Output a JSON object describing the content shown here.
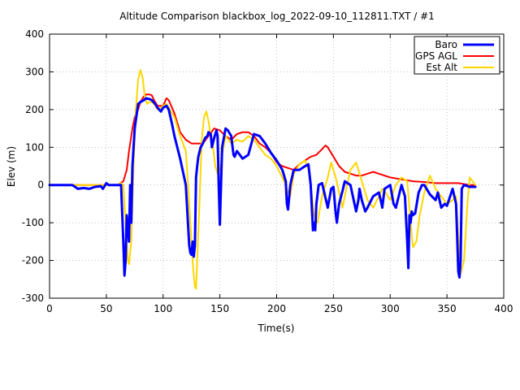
{
  "chart_data": {
    "type": "line",
    "title": "Altitude Comparison blackbox_log_2022-09-10_112811.TXT / #1",
    "xlabel": "Time(s)",
    "ylabel": "Elev (m)",
    "xlim": [
      0,
      400
    ],
    "ylim": [
      -300,
      400
    ],
    "xticks": [
      0,
      50,
      100,
      150,
      200,
      250,
      300,
      350,
      400
    ],
    "yticks": [
      -300,
      -200,
      -100,
      0,
      100,
      200,
      300,
      400
    ],
    "grid": true,
    "legend_position": "top-right",
    "series": [
      {
        "name": "Baro",
        "color": "#0000ff",
        "x": [
          0,
          20,
          25,
          30,
          35,
          40,
          45,
          47,
          50,
          52,
          55,
          60,
          63,
          65,
          66,
          67,
          68,
          70,
          71,
          72,
          73,
          75,
          78,
          80,
          83,
          85,
          88,
          90,
          93,
          95,
          98,
          100,
          103,
          105,
          108,
          110,
          115,
          120,
          123,
          124,
          125,
          126,
          127,
          128,
          129,
          130,
          131,
          133,
          135,
          137,
          139,
          140,
          142,
          143,
          145,
          147,
          148,
          149,
          150,
          152,
          155,
          157,
          160,
          162,
          163,
          165,
          170,
          175,
          180,
          185,
          190,
          195,
          200,
          205,
          208,
          209,
          210,
          212,
          215,
          220,
          225,
          228,
          230,
          231,
          232,
          233,
          234,
          235,
          237,
          240,
          245,
          248,
          250,
          252,
          253,
          255,
          258,
          260,
          265,
          270,
          272,
          273,
          275,
          278,
          280,
          285,
          290,
          292,
          293,
          295,
          300,
          303,
          305,
          310,
          313,
          315,
          316,
          317,
          318,
          319,
          320,
          322,
          325,
          328,
          330,
          335,
          340,
          342,
          345,
          348,
          350,
          355,
          358,
          360,
          361,
          362,
          363,
          365,
          370,
          375
        ],
        "y": [
          0,
          0,
          -10,
          -8,
          -10,
          -5,
          -3,
          -10,
          5,
          0,
          0,
          0,
          0,
          -150,
          -240,
          -200,
          -80,
          -150,
          0,
          -100,
          50,
          150,
          215,
          220,
          225,
          230,
          228,
          225,
          215,
          205,
          195,
          205,
          210,
          200,
          160,
          130,
          70,
          0,
          -160,
          -180,
          -185,
          -150,
          -190,
          -160,
          20,
          50,
          75,
          100,
          110,
          125,
          130,
          140,
          135,
          100,
          125,
          145,
          130,
          0,
          -105,
          100,
          150,
          145,
          130,
          80,
          75,
          90,
          70,
          80,
          135,
          130,
          110,
          85,
          65,
          40,
          10,
          -50,
          -65,
          0,
          40,
          40,
          50,
          55,
          0,
          -60,
          -120,
          -100,
          -120,
          -50,
          0,
          5,
          -60,
          -10,
          -5,
          -75,
          -100,
          -50,
          -15,
          10,
          0,
          -70,
          -40,
          -10,
          -40,
          -70,
          -60,
          -30,
          -20,
          -45,
          -60,
          -10,
          0,
          -50,
          -60,
          0,
          -30,
          -150,
          -220,
          -80,
          -100,
          -70,
          -80,
          -75,
          -20,
          0,
          0,
          -25,
          -40,
          -20,
          -60,
          -50,
          -55,
          -10,
          -50,
          -230,
          -245,
          -200,
          -10,
          0,
          -5,
          -5
        ]
      },
      {
        "name": "GPS AGL",
        "color": "#ff0000",
        "x": [
          0,
          50,
          55,
          60,
          65,
          68,
          70,
          73,
          75,
          78,
          80,
          83,
          85,
          88,
          90,
          92,
          95,
          100,
          103,
          105,
          110,
          115,
          120,
          125,
          130,
          135,
          140,
          145,
          150,
          155,
          160,
          165,
          170,
          175,
          180,
          185,
          190,
          195,
          200,
          205,
          210,
          215,
          220,
          225,
          230,
          235,
          240,
          243,
          245,
          250,
          255,
          260,
          265,
          270,
          275,
          280,
          285,
          290,
          300,
          310,
          320,
          330,
          340,
          350,
          360,
          370,
          375
        ],
        "y": [
          0,
          0,
          0,
          0,
          10,
          40,
          90,
          150,
          180,
          200,
          220,
          235,
          240,
          240,
          238,
          225,
          210,
          210,
          230,
          225,
          190,
          140,
          120,
          110,
          110,
          110,
          130,
          150,
          145,
          130,
          120,
          135,
          140,
          140,
          130,
          110,
          100,
          85,
          60,
          50,
          45,
          40,
          55,
          65,
          75,
          80,
          95,
          105,
          100,
          75,
          50,
          35,
          30,
          25,
          25,
          30,
          35,
          30,
          20,
          15,
          10,
          8,
          5,
          5,
          5,
          0,
          0
        ]
      },
      {
        "name": "Est Alt",
        "color": "#ffd700",
        "x": [
          0,
          50,
          55,
          60,
          63,
          65,
          67,
          69,
          70,
          72,
          74,
          76,
          78,
          80,
          82,
          84,
          86,
          88,
          90,
          92,
          95,
          98,
          100,
          103,
          105,
          110,
          115,
          120,
          122,
          124,
          126,
          127,
          128,
          129,
          130,
          132,
          134,
          136,
          138,
          140,
          142,
          144,
          146,
          148,
          150,
          152,
          155,
          160,
          165,
          170,
          175,
          180,
          185,
          190,
          195,
          200,
          205,
          208,
          210,
          212,
          215,
          220,
          225,
          228,
          230,
          233,
          236,
          240,
          245,
          248,
          252,
          255,
          258,
          262,
          265,
          270,
          275,
          280,
          285,
          290,
          293,
          296,
          300,
          305,
          310,
          315,
          318,
          320,
          323,
          326,
          330,
          335,
          340,
          345,
          350,
          355,
          358,
          362,
          365,
          368,
          370,
          375
        ],
        "y": [
          0,
          0,
          0,
          0,
          5,
          0,
          -100,
          -200,
          -210,
          -150,
          50,
          200,
          280,
          305,
          285,
          230,
          215,
          220,
          220,
          215,
          200,
          205,
          210,
          215,
          205,
          180,
          130,
          90,
          0,
          -100,
          -200,
          -240,
          -270,
          -275,
          -200,
          -50,
          120,
          180,
          195,
          170,
          130,
          100,
          50,
          30,
          40,
          80,
          130,
          110,
          120,
          115,
          130,
          120,
          100,
          80,
          70,
          50,
          20,
          0,
          -20,
          -30,
          30,
          55,
          65,
          40,
          0,
          -80,
          -100,
          -30,
          20,
          60,
          20,
          -20,
          -60,
          0,
          40,
          60,
          10,
          -40,
          -60,
          -30,
          -10,
          -20,
          -40,
          0,
          20,
          10,
          -100,
          -165,
          -150,
          -80,
          -20,
          25,
          -10,
          -30,
          -50,
          -40,
          -30,
          -235,
          -200,
          -50,
          20,
          0
        ]
      }
    ]
  }
}
